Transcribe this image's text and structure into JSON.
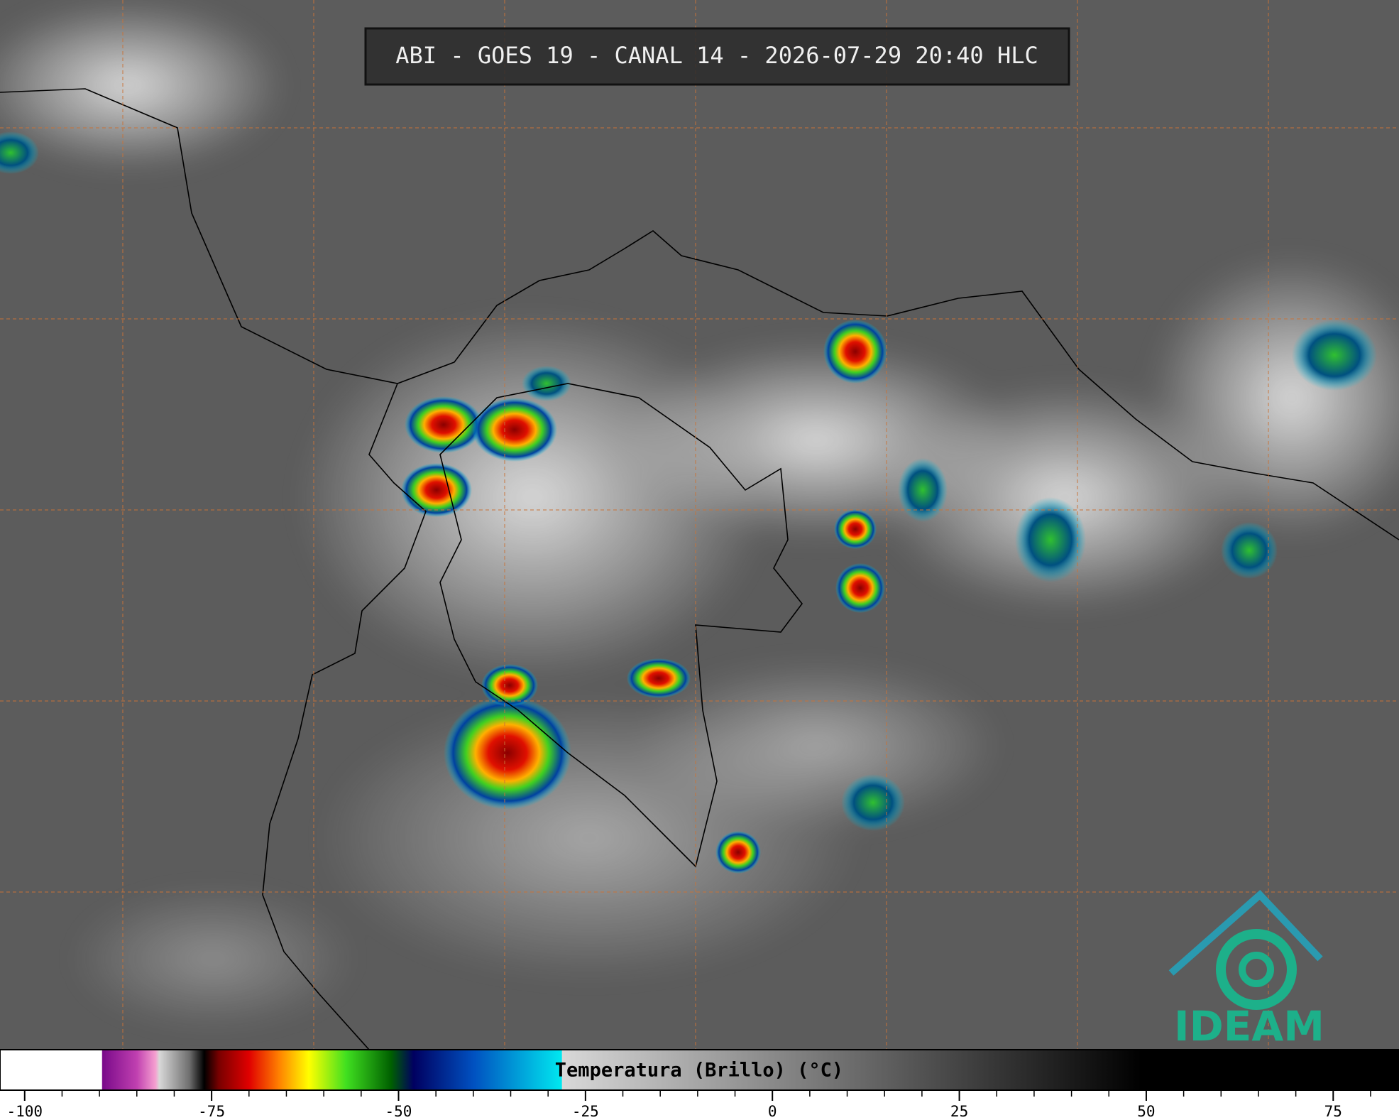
{
  "header": {
    "title": "ABI - GOES 19 - CANAL 14 - 2026-07-29 20:40 HLC"
  },
  "logo": {
    "text": "IDEAM"
  },
  "colorbar": {
    "label": "Temperatura (Brillo) (°C)",
    "xlim": [
      -103.3,
      83.8
    ],
    "xticks": [
      -100,
      -75,
      -50,
      -25,
      0,
      25,
      50,
      75
    ],
    "xticks_minor": [
      -95,
      -90,
      -85,
      -80,
      -70,
      -65,
      -60,
      -55,
      -45,
      -40,
      -35,
      -30,
      -20,
      -15,
      -10,
      -5,
      5,
      10,
      15,
      20,
      30,
      35,
      40,
      45,
      55,
      60,
      65,
      70,
      80
    ],
    "colorscale": [
      [
        -103.3,
        "#ffffff"
      ],
      [
        -89.7,
        "#ffffff"
      ],
      [
        -89.6,
        "#7a0a8a"
      ],
      [
        -85,
        "#c040b0"
      ],
      [
        -82.5,
        "#f5a0d0"
      ],
      [
        -82,
        "#d8d8d8"
      ],
      [
        -78,
        "#707070"
      ],
      [
        -76,
        "#000000"
      ],
      [
        -74,
        "#7a0000"
      ],
      [
        -70,
        "#e00000"
      ],
      [
        -66,
        "#ff8000"
      ],
      [
        -62,
        "#ffff00"
      ],
      [
        -57,
        "#40e020"
      ],
      [
        -51,
        "#006000"
      ],
      [
        -48,
        "#000060"
      ],
      [
        -40,
        "#0050c0"
      ],
      [
        -28.2,
        "#00e8f0"
      ],
      [
        -28.1,
        "#d8d8d8"
      ],
      [
        49.4,
        "#000000"
      ],
      [
        83.8,
        "#000000"
      ]
    ]
  }
}
